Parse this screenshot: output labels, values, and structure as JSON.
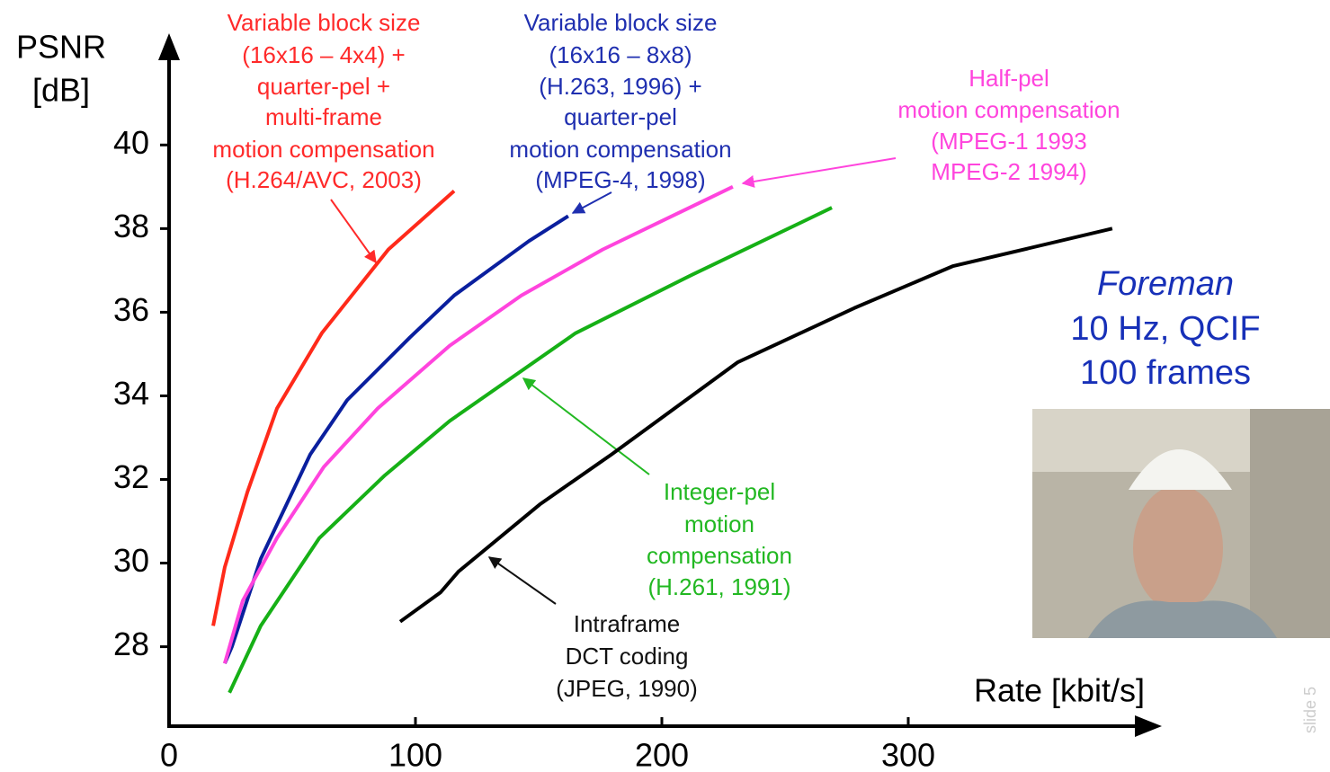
{
  "chart_data": {
    "type": "line",
    "x_label": "Rate [kbit/s]",
    "y_label": [
      "PSNR",
      "[dB]"
    ],
    "xlim": [
      0,
      400
    ],
    "xticks": [
      0,
      100,
      200,
      300
    ],
    "ylim": [
      26.1,
      42.5
    ],
    "yticks": [
      28,
      30,
      32,
      34,
      36,
      38,
      40
    ],
    "series": [
      {
        "color": "#ff2a1a",
        "x": [
          17.9,
          22.6,
          31.8,
          43.8,
          62,
          89,
          115.7
        ],
        "values": [
          28.5,
          29.9,
          31.7,
          33.7,
          35.5,
          37.5,
          38.9
        ]
      },
      {
        "color": "#0a1f9e",
        "x": [
          22.6,
          25.5,
          37.2,
          57.3,
          72.3,
          97.8,
          115.7,
          146,
          162
        ],
        "values": [
          27.6,
          28.0,
          30.1,
          32.6,
          33.9,
          35.4,
          36.4,
          37.7,
          38.3
        ]
      },
      {
        "color": "#ff44dd",
        "x": [
          22.6,
          29.9,
          43.8,
          62.8,
          84.7,
          113.9,
          143,
          176,
          228.8
        ],
        "values": [
          27.6,
          29.1,
          30.6,
          32.3,
          33.7,
          35.2,
          36.4,
          37.5,
          39.0
        ]
      },
      {
        "color": "#16b016",
        "x": [
          24.5,
          37.2,
          61,
          87.6,
          113.9,
          165,
          212.4,
          269
        ],
        "values": [
          26.9,
          28.5,
          30.6,
          32.1,
          33.4,
          35.5,
          36.9,
          38.5
        ]
      },
      {
        "color": "#000000",
        "x": [
          93.8,
          110.2,
          117.5,
          150.4,
          179.6,
          230.7,
          278.1,
          318,
          382.8
        ],
        "values": [
          28.6,
          29.3,
          29.8,
          31.4,
          32.6,
          34.8,
          36.1,
          37.1,
          38.0
        ]
      }
    ],
    "annotations": [
      {
        "lines": [
          "Variable block size",
          "(16x16 – 4x4) +",
          "quarter-pel +",
          "multi-frame",
          "motion compensation",
          "(H.264/AVC, 2003)"
        ]
      },
      {
        "lines": [
          "Variable block size",
          "(16x16 – 8x8)",
          "(H.263, 1996) +",
          "quarter-pel",
          "motion compensation",
          "(MPEG-4, 1998)"
        ]
      },
      {
        "lines": [
          "Half-pel",
          "motion compensation",
          "(MPEG-1 1993",
          "MPEG-2 1994)"
        ]
      },
      {
        "lines": [
          "Integer-pel",
          "motion",
          "compensation",
          "(H.261, 1991)"
        ]
      },
      {
        "lines": [
          "Intraframe",
          "DCT coding",
          "(JPEG, 1990)"
        ]
      }
    ],
    "info": [
      "Foreman",
      "10 Hz, QCIF",
      "100 frames"
    ]
  },
  "slide_label": "slide 5"
}
